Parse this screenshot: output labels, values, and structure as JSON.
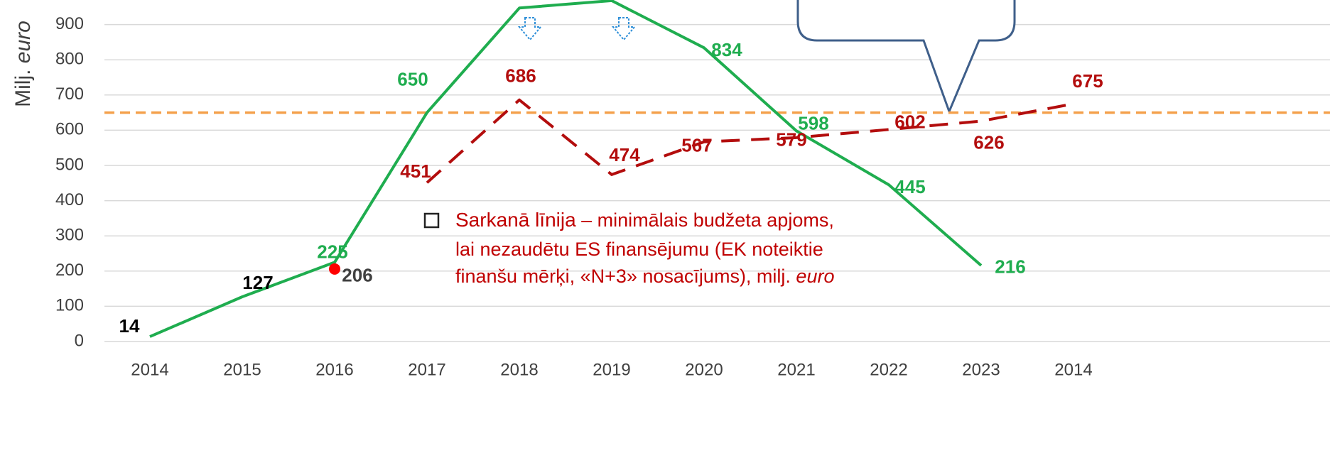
{
  "chart_data": {
    "type": "line",
    "y_label": "Milj. ",
    "y_label_italic": "euro",
    "categories": [
      "2014",
      "2015",
      "2016",
      "2017",
      "2018",
      "2019",
      "2020",
      "2021",
      "2022",
      "2023",
      "2014"
    ],
    "series": [
      {
        "color": "#1fad4f",
        "style": "solid",
        "values": [
          14,
          127,
          225,
          650,
          947,
          968,
          834,
          598,
          445,
          216,
          null
        ]
      },
      {
        "color": "#b30d0d",
        "style": "dashed",
        "values": [
          null,
          null,
          null,
          451,
          686,
          474,
          567,
          579,
          602,
          626,
          675
        ]
      },
      {
        "color": "#ff0000",
        "style": "dot",
        "values": [
          null,
          null,
          206,
          null,
          null,
          null,
          null,
          null,
          null,
          null,
          null
        ]
      }
    ],
    "reference_line": {
      "value": 650,
      "color": "#f4a04a"
    },
    "ylim": [
      0,
      1000
    ],
    "yticks": [
      0,
      100,
      200,
      300,
      400,
      500,
      600,
      700,
      800,
      900
    ],
    "grid": true,
    "annotation": {
      "bold": "Sarkanā līnija",
      "lines": [
        " – minimālais budžeta apjoms,",
        "lai nezaudētu ES finansējumu (EK noteiktie",
        "finanšu mērķi, «N+3» nosacījums), milj. "
      ],
      "italic": "euro"
    }
  }
}
